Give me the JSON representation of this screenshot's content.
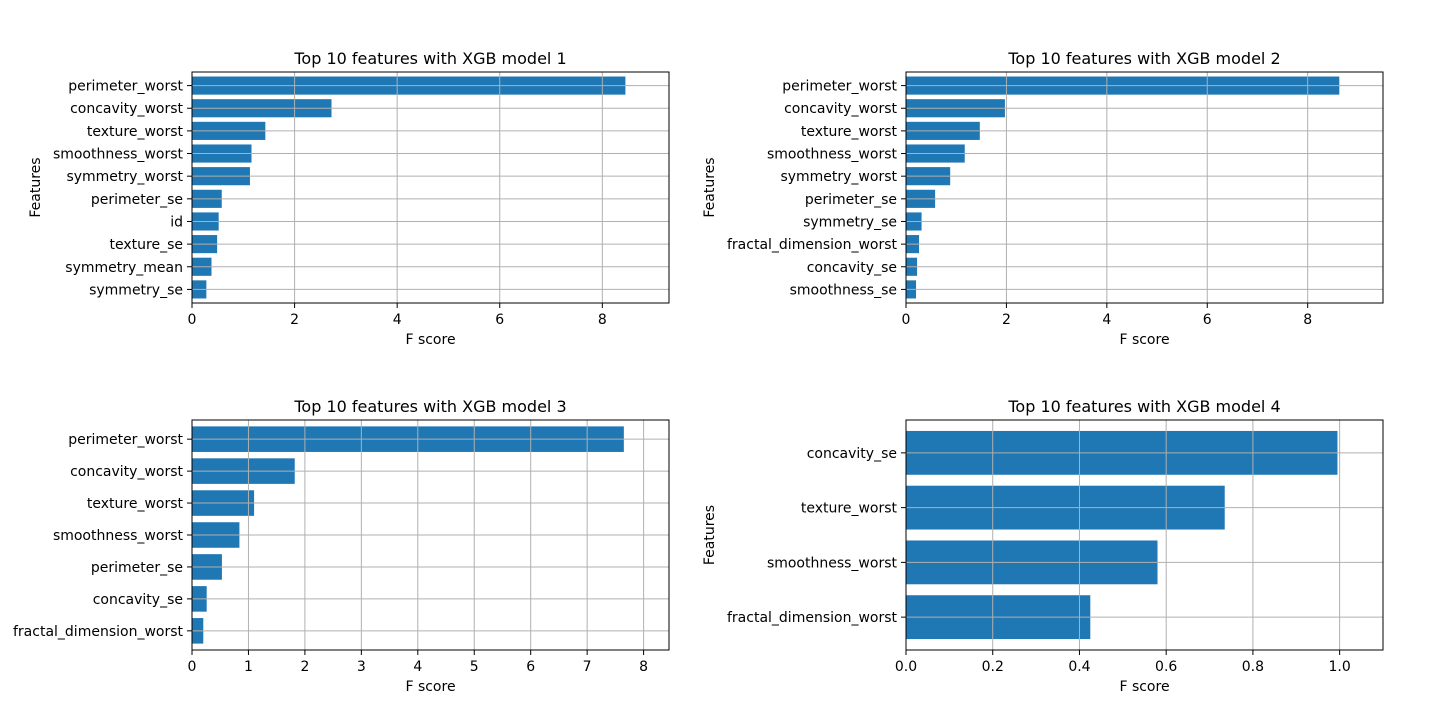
{
  "chart_data": [
    {
      "type": "bar",
      "orientation": "horizontal",
      "title": "Top 10 features with XGB model 1",
      "xlabel": "F score",
      "ylabel": "Features",
      "xlim": [
        0,
        9.3
      ],
      "xticks": [
        0,
        2,
        4,
        6,
        8
      ],
      "xtick_labels": [
        "0",
        "2",
        "4",
        "6",
        "8"
      ],
      "grid": true,
      "color": "#1f77b4",
      "categories": [
        "perimeter_worst",
        "concavity_worst",
        "texture_worst",
        "smoothness_worst",
        "symmetry_worst",
        "perimeter_se",
        "id",
        "texture_se",
        "symmetry_mean",
        "symmetry_se"
      ],
      "values": [
        8.45,
        2.72,
        1.43,
        1.16,
        1.13,
        0.58,
        0.52,
        0.49,
        0.38,
        0.28
      ]
    },
    {
      "type": "bar",
      "orientation": "horizontal",
      "title": "Top 10 features with XGB model 2",
      "xlabel": "F score",
      "ylabel": "Features",
      "xlim": [
        0,
        9.5
      ],
      "xticks": [
        0,
        2,
        4,
        6,
        8
      ],
      "xtick_labels": [
        "0",
        "2",
        "4",
        "6",
        "8"
      ],
      "grid": true,
      "color": "#1f77b4",
      "categories": [
        "perimeter_worst",
        "concavity_worst",
        "texture_worst",
        "smoothness_worst",
        "symmetry_worst",
        "perimeter_se",
        "symmetry_se",
        "fractal_dimension_worst",
        "concavity_se",
        "smoothness_se"
      ],
      "values": [
        8.63,
        1.97,
        1.47,
        1.17,
        0.88,
        0.58,
        0.31,
        0.26,
        0.22,
        0.2
      ]
    },
    {
      "type": "bar",
      "orientation": "horizontal",
      "title": "Top 10 features with XGB model 3",
      "xlabel": "F score",
      "ylabel": "Features",
      "xlim": [
        0,
        8.45
      ],
      "xticks": [
        0,
        1,
        2,
        3,
        4,
        5,
        6,
        7,
        8
      ],
      "xtick_labels": [
        "0",
        "1",
        "2",
        "3",
        "4",
        "5",
        "6",
        "7",
        "8"
      ],
      "grid": true,
      "color": "#1f77b4",
      "categories": [
        "perimeter_worst",
        "concavity_worst",
        "texture_worst",
        "smoothness_worst",
        "perimeter_se",
        "concavity_se",
        "fractal_dimension_worst"
      ],
      "values": [
        7.65,
        1.82,
        1.1,
        0.84,
        0.53,
        0.26,
        0.2
      ]
    },
    {
      "type": "bar",
      "orientation": "horizontal",
      "title": "Top 10 features with XGB model 4",
      "xlabel": "F score",
      "ylabel": "Features",
      "xlim": [
        0,
        1.1
      ],
      "xticks": [
        0,
        0.2,
        0.4,
        0.6,
        0.8,
        1.0
      ],
      "xtick_labels": [
        "0.0",
        "0.2",
        "0.4",
        "0.6",
        "0.8",
        "1.0"
      ],
      "grid": true,
      "color": "#1f77b4",
      "categories": [
        "concavity_se",
        "texture_worst",
        "smoothness_worst",
        "fractal_dimension_worst"
      ],
      "values": [
        0.995,
        0.735,
        0.58,
        0.425
      ]
    }
  ]
}
